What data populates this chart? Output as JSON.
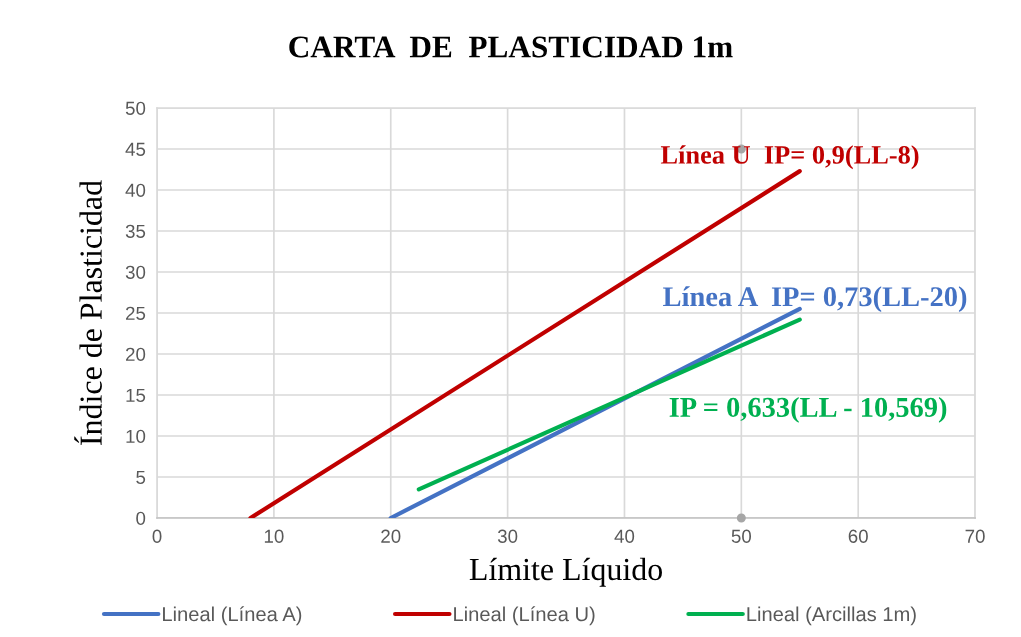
{
  "chart_data": {
    "type": "line",
    "title": "CARTA  DE  PLASTICIDAD 1m",
    "xlabel": "Límite Líquido",
    "ylabel": "Índice de Plasticidad",
    "series": [
      {
        "name": "Lineal (Línea A)",
        "color": "#4472c4",
        "x": [
          20,
          55
        ],
        "values": [
          0,
          25.5
        ]
      },
      {
        "name": "Lineal (Línea U)",
        "color": "#c00000",
        "x": [
          8,
          55
        ],
        "values": [
          0,
          42.3
        ]
      },
      {
        "name": "Lineal (Arcillas 1m)",
        "color": "#00b050",
        "x": [
          22.4,
          55
        ],
        "values": [
          3.5,
          24.2
        ]
      },
      {
        "type": "scatter",
        "color": "#a6a6a6",
        "marker": "circle",
        "x": [
          50,
          50
        ],
        "values": [
          0,
          45
        ]
      }
    ],
    "annotations": [
      "Línea A  IP= 0,73(LL-20)",
      "Línea U  IP= 0,9(LL-8)",
      "IP = 0,633(LL - 10,569)"
    ],
    "xlim": [
      0,
      70
    ],
    "ylim": [
      0,
      50
    ],
    "xticks": [
      0,
      10,
      20,
      30,
      40,
      50,
      60,
      70
    ],
    "yticks": [
      0,
      5,
      10,
      15,
      20,
      25,
      30,
      35,
      40,
      45,
      50
    ],
    "grid": true,
    "legend": "bottom",
    "line_style": "solid"
  }
}
